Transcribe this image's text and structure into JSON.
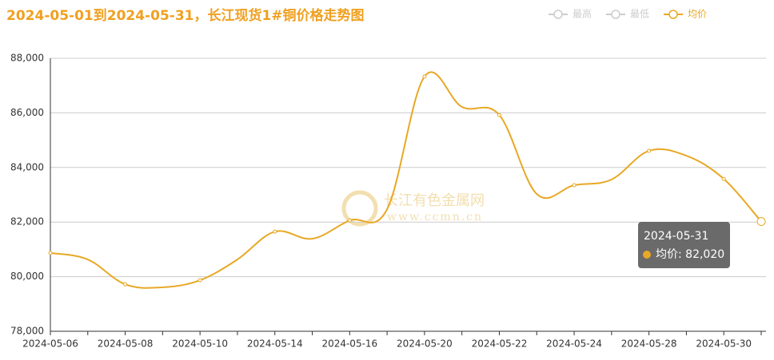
{
  "chart_data": {
    "type": "line",
    "title": "2024-05-01到2024-05-31，长江现货1#铜价格走势图",
    "legend": [
      "最高",
      "最低"
    ],
    "legend_inactive_color": "#cccccc",
    "watermark": [
      "长江有色金属网",
      "www.ccmn.cn"
    ],
    "categories": [
      "2024-05-06",
      null,
      "2024-05-08",
      null,
      "2024-05-10",
      null,
      "2024-05-14",
      null,
      "2024-05-16",
      null,
      "2024-05-20",
      null,
      "2024-05-22",
      null,
      "2024-05-24",
      null,
      "2024-05-28",
      null,
      "2024-05-30",
      null
    ],
    "series": [
      {
        "name": "均价",
        "color": "#e8a825",
        "values": [
          80870,
          80630,
          79720,
          79610,
          79870,
          80630,
          81650,
          81390,
          82060,
          82470,
          87330,
          86220,
          85920,
          83030,
          83350,
          83560,
          84610,
          84430,
          83580,
          82020
        ]
      }
    ],
    "ylim": [
      78000,
      88000
    ],
    "yticks": [
      {
        "value": 78000,
        "label": "78,000"
      },
      {
        "value": 80000,
        "label": "80,000"
      },
      {
        "value": 82000,
        "label": "82,000"
      },
      {
        "value": 84000,
        "label": "84,000"
      },
      {
        "value": 86000,
        "label": "86,000"
      },
      {
        "value": 88000,
        "label": "88,000"
      }
    ],
    "grid": true,
    "tooltip": {
      "title": "2024-05-31",
      "label": "均价: 82,020"
    }
  }
}
